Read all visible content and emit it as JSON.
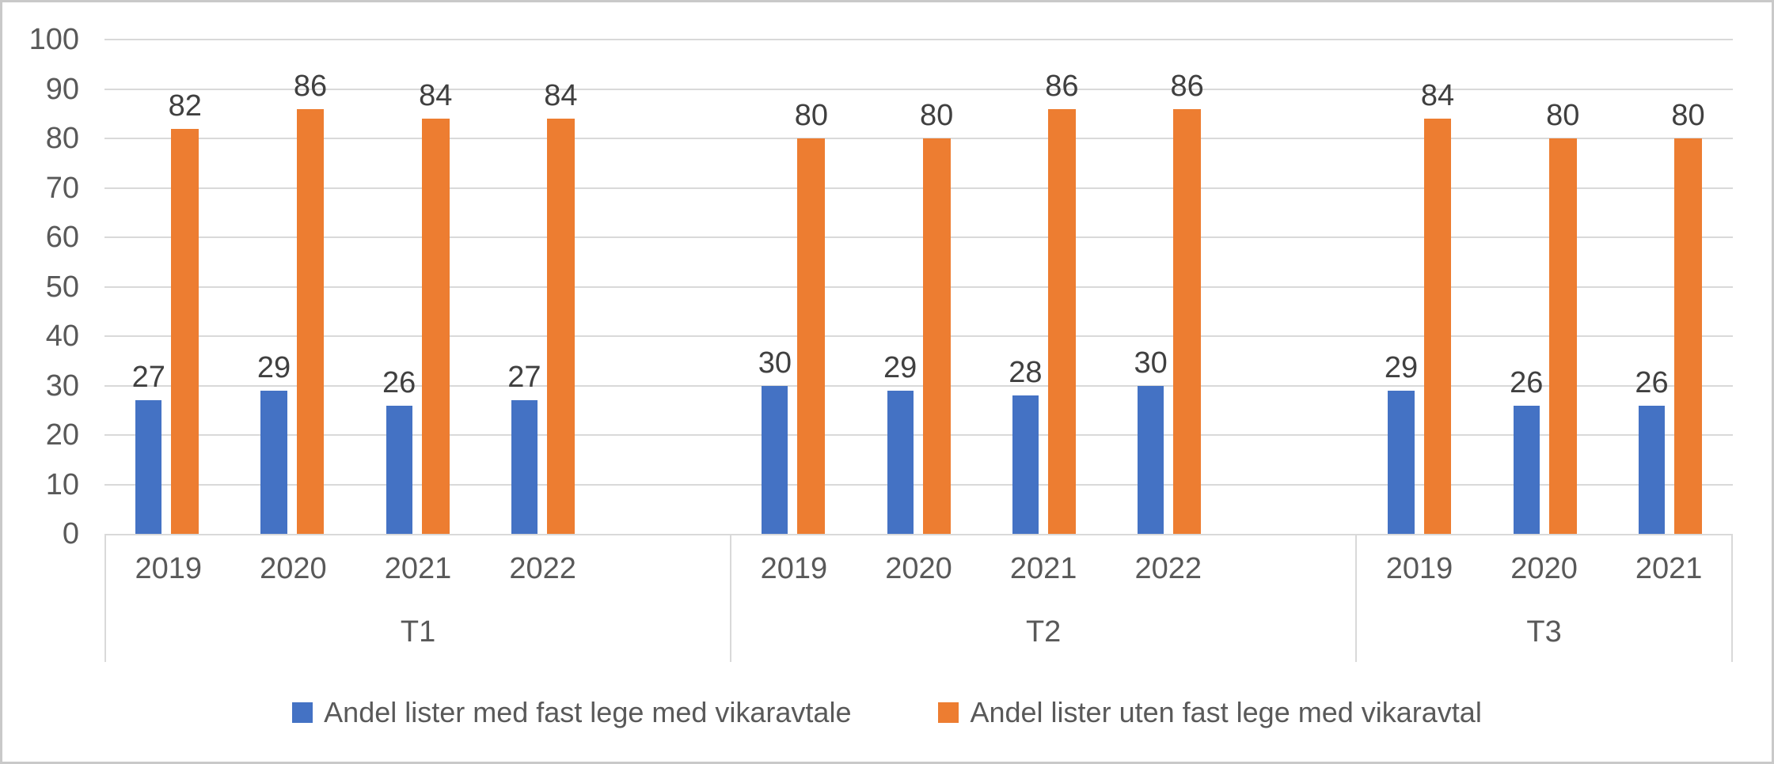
{
  "chart_data": {
    "type": "bar",
    "title": "",
    "xlabel": "",
    "ylabel": "",
    "ylim": [
      0,
      100
    ],
    "yticks": [
      0,
      10,
      20,
      30,
      40,
      50,
      60,
      70,
      80,
      90,
      100
    ],
    "grid": true,
    "legend_position": "bottom",
    "groups": [
      {
        "label": "T1",
        "categories": [
          "2019",
          "2020",
          "2021",
          "2022"
        ]
      },
      {
        "label": "T2",
        "categories": [
          "2019",
          "2020",
          "2021",
          "2022"
        ]
      },
      {
        "label": "T3",
        "categories": [
          "2019",
          "2020",
          "2021"
        ]
      }
    ],
    "series": [
      {
        "name": "Andel lister med fast lege med vikaravtale",
        "color": "#4472C4",
        "values": [
          27,
          29,
          26,
          27,
          30,
          29,
          28,
          30,
          29,
          26,
          26
        ]
      },
      {
        "name": "Andel lister uten fast lege med vikaravtal",
        "color": "#ED7D31",
        "values": [
          82,
          86,
          84,
          84,
          80,
          80,
          86,
          86,
          84,
          80,
          80
        ]
      }
    ]
  },
  "colors": {
    "series_blue": "#4472C4",
    "series_orange": "#ED7D31",
    "gridline": "#D9D9D9",
    "axis_text": "#595959",
    "data_label_text": "#404040",
    "frame_border": "#C9C9C9"
  }
}
